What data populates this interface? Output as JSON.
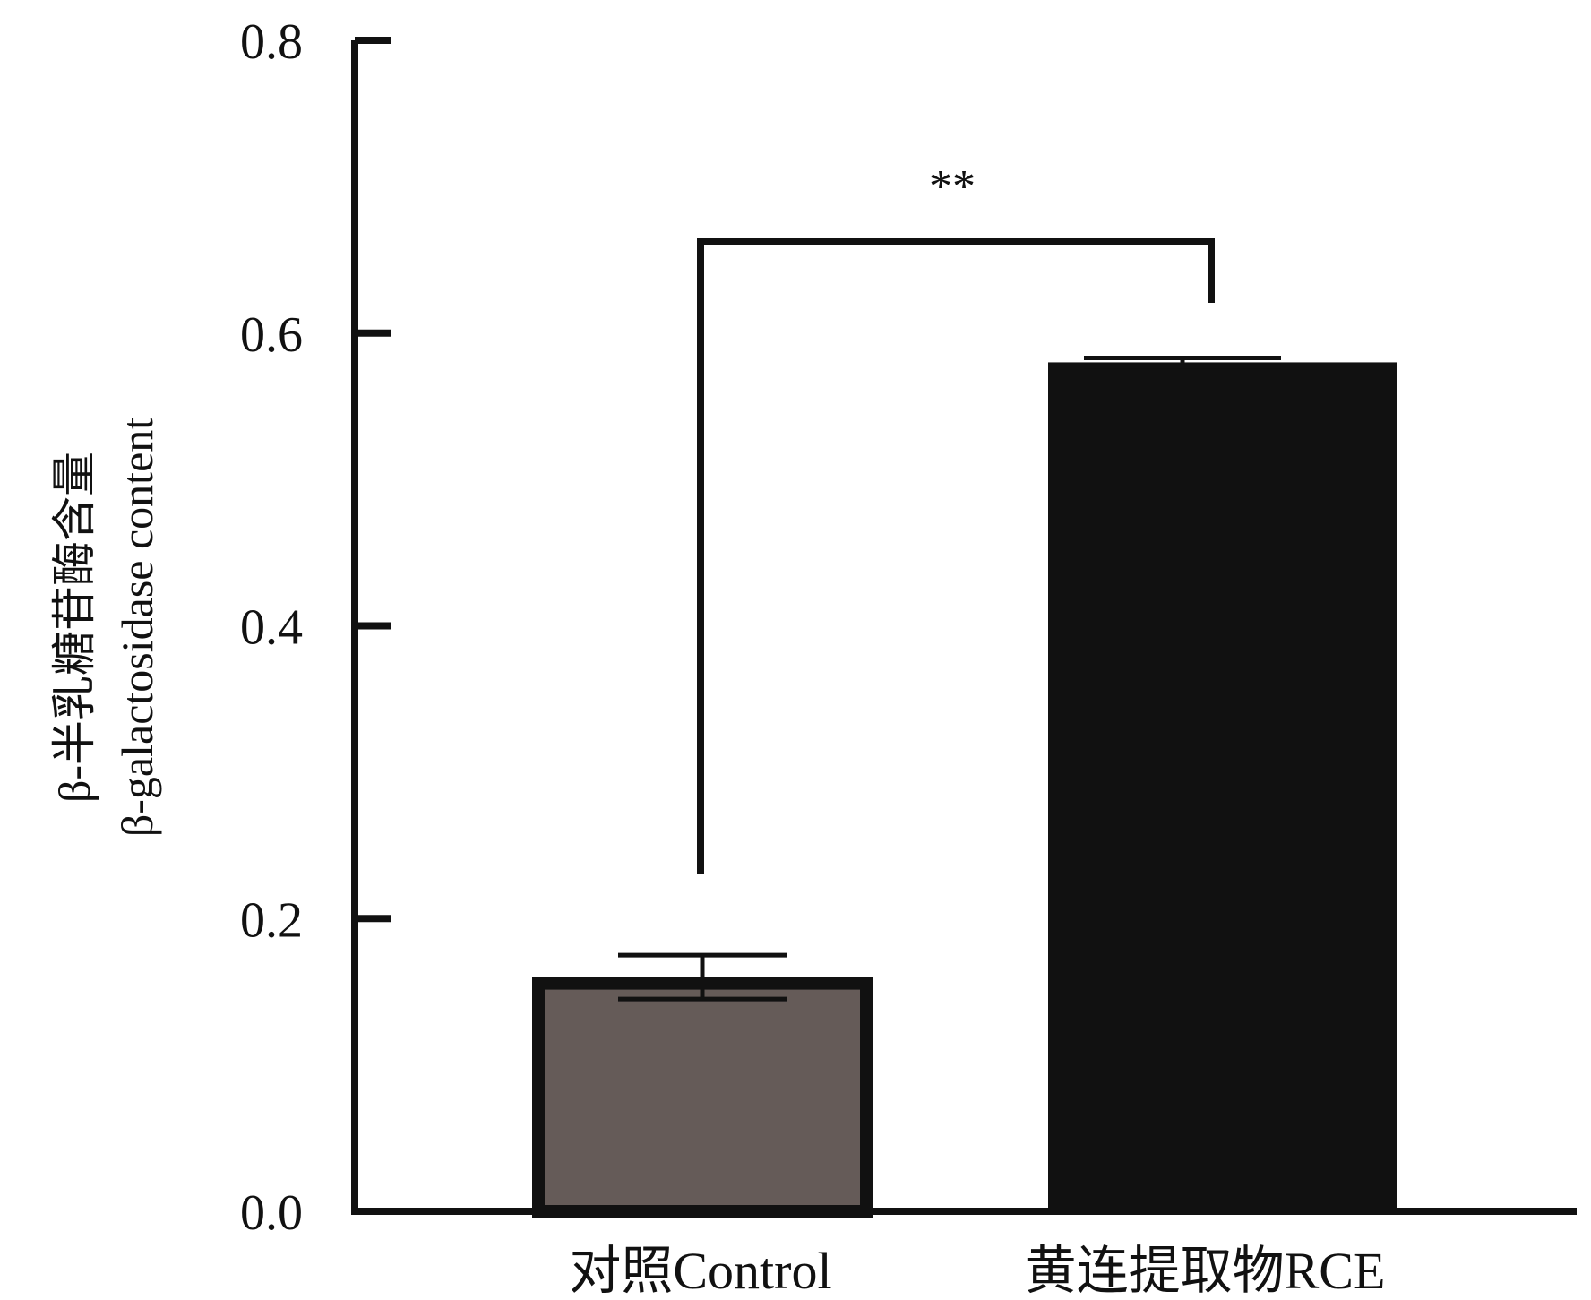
{
  "chart_data": {
    "type": "bar",
    "categories": [
      "对照Control",
      "黄连提取物RCE"
    ],
    "values": [
      0.16,
      0.58
    ],
    "errors": [
      0.015,
      0.003
    ],
    "colors": [
      "#655b58",
      "#111111"
    ],
    "ylabel_lines": [
      "β-半乳糖苷酶含量",
      "β-galactosidase content"
    ],
    "ylim": [
      0,
      0.8
    ],
    "yticks": [
      "0.0",
      "0.2",
      "0.4",
      "0.6",
      "0.8"
    ],
    "grid": false,
    "significance": {
      "between": [
        0,
        1
      ],
      "label": "**"
    }
  }
}
